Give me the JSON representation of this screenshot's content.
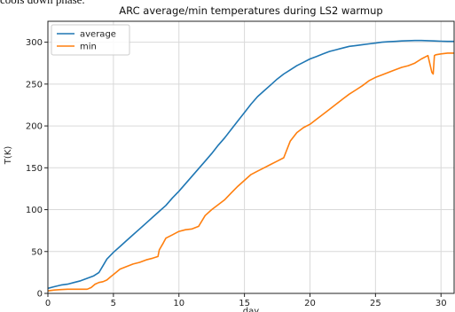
{
  "header_text": "cools down phase.",
  "chart_data": {
    "type": "line",
    "title": "ARC average/min temperatures during LS2 warmup",
    "xlabel": "day",
    "ylabel": "T(K)",
    "xlim": [
      0,
      31
    ],
    "ylim": [
      0,
      325
    ],
    "xticks": [
      0,
      5,
      10,
      15,
      20,
      25,
      30
    ],
    "yticks": [
      0,
      50,
      100,
      150,
      200,
      250,
      300
    ],
    "grid": true,
    "legend": "top-left",
    "series": [
      {
        "name": "average",
        "color": "#1f77b4",
        "x": [
          0,
          0.5,
          1,
          1.5,
          2,
          2.5,
          3,
          3.5,
          3.9,
          4.2,
          4.5,
          5,
          5.5,
          6,
          6.5,
          7,
          7.5,
          8,
          8.5,
          9,
          9.5,
          10,
          10.5,
          11,
          11.5,
          12,
          12.5,
          13,
          13.5,
          14,
          14.5,
          15,
          15.5,
          16,
          16.5,
          17,
          17.5,
          18,
          18.5,
          19,
          19.5,
          20,
          20.5,
          21,
          21.5,
          22,
          22.5,
          23,
          23.5,
          24,
          24.5,
          25,
          25.5,
          26,
          26.5,
          27,
          27.5,
          28,
          28.5,
          29,
          29.5,
          30,
          30.5,
          31
        ],
        "y": [
          6,
          8,
          10,
          11,
          13,
          15,
          18,
          21,
          25,
          33,
          41,
          49,
          56,
          63,
          70,
          77,
          84,
          91,
          98,
          105,
          114,
          122,
          131,
          140,
          149,
          158,
          167,
          177,
          186,
          196,
          206,
          216,
          226,
          235,
          242,
          249,
          256,
          262,
          267,
          272,
          276,
          280,
          283,
          286,
          289,
          291,
          293,
          295,
          296,
          297,
          298,
          299,
          300,
          300.5,
          301,
          301.5,
          301.8,
          302,
          302,
          301.8,
          301.5,
          301.2,
          301,
          301
        ]
      },
      {
        "name": "min",
        "color": "#ff7f0e",
        "x": [
          0,
          0.5,
          1,
          1.5,
          2,
          2.5,
          3,
          3.3,
          3.6,
          3.9,
          4.2,
          4.5,
          4.8,
          5.2,
          5.5,
          6,
          6.5,
          7,
          7.5,
          8,
          8.4,
          8.5,
          8.8,
          9,
          9.5,
          10,
          10.5,
          11,
          11.5,
          12,
          12.5,
          13,
          13.5,
          14,
          14.5,
          15,
          15.5,
          16,
          16.5,
          17,
          17.5,
          18,
          18.5,
          19,
          19.5,
          20,
          20.5,
          21,
          21.5,
          22,
          22.5,
          23,
          23.5,
          24,
          24.5,
          25,
          25.5,
          26,
          26.5,
          27,
          27.5,
          28,
          28.5,
          29,
          29.3,
          29.4,
          29.5,
          29.6,
          30,
          30.5,
          31
        ],
        "y": [
          3,
          4,
          4.5,
          5,
          5,
          5,
          5,
          7,
          11,
          13,
          14,
          16,
          20,
          25,
          29,
          32,
          35,
          37,
          40,
          42,
          44,
          52,
          60,
          66,
          70,
          74,
          76,
          77,
          80,
          93,
          100,
          106,
          112,
          120,
          128,
          135,
          142,
          146,
          150,
          154,
          158,
          162,
          182,
          192,
          198,
          202,
          208,
          214,
          220,
          226,
          232,
          238,
          243,
          248,
          254,
          258,
          261,
          264,
          267,
          270,
          272,
          275,
          280,
          284,
          264,
          262,
          284,
          285,
          286,
          287,
          287
        ]
      }
    ]
  }
}
